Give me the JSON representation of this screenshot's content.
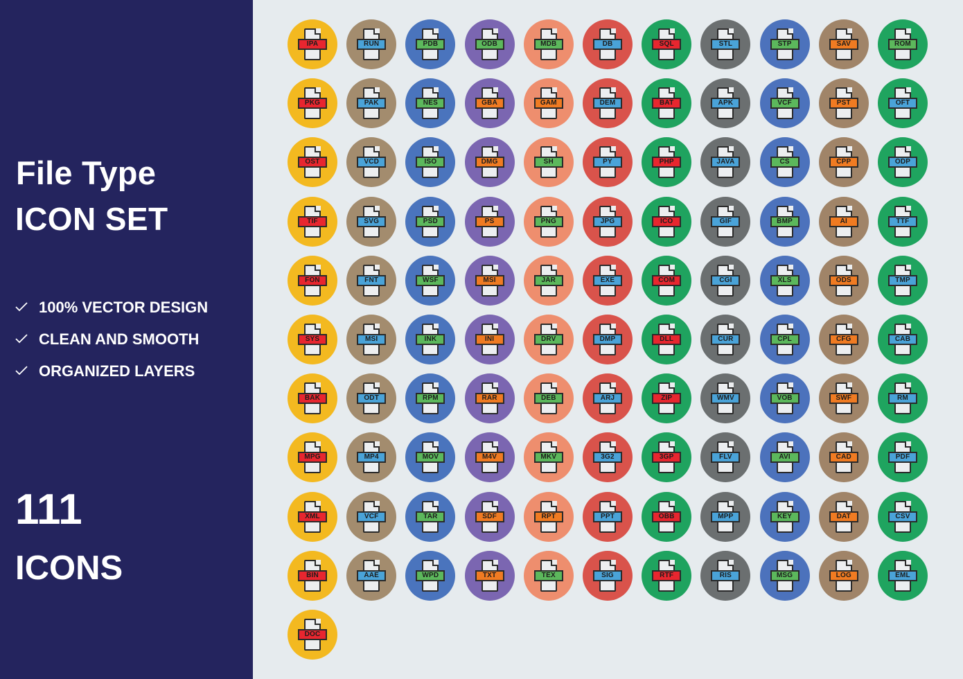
{
  "title": {
    "line1": "File Type",
    "line2": "ICON SET"
  },
  "features": [
    "100% VECTOR DESIGN",
    "CLEAN AND SMOOTH",
    "ORGANIZED LAYERS"
  ],
  "count": {
    "number": "111",
    "label": "ICONS"
  },
  "colors": {
    "sidebar": "#24245e",
    "background": "#e6ebee",
    "columns": [
      "#f3b920",
      "#a38c6e",
      "#4a74bd",
      "#7b66b1",
      "#ee8e6e",
      "#d9534b",
      "#1fa35f",
      "#6b6f70",
      "#4c72bc",
      "#a08468",
      "#1fa45f"
    ],
    "tags": [
      "#e8262f",
      "#4aa3d8",
      "#5cb85c",
      "#f07b22"
    ]
  },
  "rows": [
    [
      {
        "l": "IPA",
        "t": 0
      },
      {
        "l": "RUN",
        "t": 1
      },
      {
        "l": "PDB",
        "t": 2
      },
      {
        "l": "ODB",
        "t": 2
      },
      {
        "l": "MDB",
        "t": 2
      },
      {
        "l": "DB",
        "t": 1
      },
      {
        "l": "SQL",
        "t": 0
      },
      {
        "l": "STL",
        "t": 1
      },
      {
        "l": "STP",
        "t": 2
      },
      {
        "l": "SAV",
        "t": 3
      },
      {
        "l": "ROM",
        "t": 2
      }
    ],
    [
      {
        "l": "PKG",
        "t": 0
      },
      {
        "l": "PAK",
        "t": 1
      },
      {
        "l": "NES",
        "t": 2
      },
      {
        "l": "GBA",
        "t": 3
      },
      {
        "l": "GAM",
        "t": 3
      },
      {
        "l": "DEM",
        "t": 1
      },
      {
        "l": "BAT",
        "t": 0
      },
      {
        "l": "APK",
        "t": 1
      },
      {
        "l": "VCF",
        "t": 2
      },
      {
        "l": "PST",
        "t": 3
      },
      {
        "l": "OFT",
        "t": 1
      }
    ],
    [
      {
        "l": "OST",
        "t": 0
      },
      {
        "l": "VCD",
        "t": 1
      },
      {
        "l": "ISO",
        "t": 2
      },
      {
        "l": "DMG",
        "t": 3
      },
      {
        "l": "SH",
        "t": 2
      },
      {
        "l": "PY",
        "t": 1
      },
      {
        "l": "PHP",
        "t": 0
      },
      {
        "l": "JAVA",
        "t": 1
      },
      {
        "l": "CS",
        "t": 2
      },
      {
        "l": "CPP",
        "t": 3
      },
      {
        "l": "ODP",
        "t": 1
      }
    ],
    [
      {
        "l": "TIF",
        "t": 0
      },
      {
        "l": "SVG",
        "t": 1
      },
      {
        "l": "PSD",
        "t": 2
      },
      {
        "l": "PS",
        "t": 3
      },
      {
        "l": "PNG",
        "t": 2
      },
      {
        "l": "JPG",
        "t": 1
      },
      {
        "l": "ICO",
        "t": 0
      },
      {
        "l": "GIF",
        "t": 1
      },
      {
        "l": "BMP",
        "t": 2
      },
      {
        "l": "AI",
        "t": 3
      },
      {
        "l": "TTF",
        "t": 1
      }
    ],
    [
      {
        "l": "FON",
        "t": 0
      },
      {
        "l": "FNT",
        "t": 1
      },
      {
        "l": "WSF",
        "t": 2
      },
      {
        "l": "MSI",
        "t": 3
      },
      {
        "l": "JAR",
        "t": 2
      },
      {
        "l": "EXE",
        "t": 1
      },
      {
        "l": "COM",
        "t": 0
      },
      {
        "l": "CGI",
        "t": 1
      },
      {
        "l": "XLS",
        "t": 2
      },
      {
        "l": "ODS",
        "t": 3
      },
      {
        "l": "TMP",
        "t": 1
      }
    ],
    [
      {
        "l": "SYS",
        "t": 0
      },
      {
        "l": "MSI",
        "t": 1
      },
      {
        "l": "INK",
        "t": 2
      },
      {
        "l": "INI",
        "t": 3
      },
      {
        "l": "DRV",
        "t": 2
      },
      {
        "l": "DMP",
        "t": 1
      },
      {
        "l": "DLL",
        "t": 0
      },
      {
        "l": "CUR",
        "t": 1
      },
      {
        "l": "CPL",
        "t": 2
      },
      {
        "l": "CFG",
        "t": 3
      },
      {
        "l": "CAB",
        "t": 1
      }
    ],
    [
      {
        "l": "BAK",
        "t": 0
      },
      {
        "l": "ODT",
        "t": 1
      },
      {
        "l": "RPM",
        "t": 2
      },
      {
        "l": "RAR",
        "t": 3
      },
      {
        "l": "DEB",
        "t": 2
      },
      {
        "l": "ARJ",
        "t": 1
      },
      {
        "l": "ZIP",
        "t": 0
      },
      {
        "l": "WMV",
        "t": 1
      },
      {
        "l": "VOB",
        "t": 2
      },
      {
        "l": "SWF",
        "t": 3
      },
      {
        "l": "RM",
        "t": 1
      }
    ],
    [
      {
        "l": "MPG",
        "t": 0
      },
      {
        "l": "MP4",
        "t": 1
      },
      {
        "l": "MOV",
        "t": 2
      },
      {
        "l": "M4V",
        "t": 3
      },
      {
        "l": "MKV",
        "t": 2
      },
      {
        "l": "3G2",
        "t": 1
      },
      {
        "l": "3GP",
        "t": 0
      },
      {
        "l": "FLV",
        "t": 1
      },
      {
        "l": "AVI",
        "t": 2
      },
      {
        "l": "CAD",
        "t": 3
      },
      {
        "l": "PDF",
        "t": 1
      }
    ],
    [
      {
        "l": "XML",
        "t": 0
      },
      {
        "l": "VCF",
        "t": 1
      },
      {
        "l": "TAR",
        "t": 2
      },
      {
        "l": "SDF",
        "t": 3
      },
      {
        "l": "RPT",
        "t": 3
      },
      {
        "l": "PPT",
        "t": 1
      },
      {
        "l": "OBB",
        "t": 0
      },
      {
        "l": "MPP",
        "t": 1
      },
      {
        "l": "KEY",
        "t": 2
      },
      {
        "l": "DAT",
        "t": 3
      },
      {
        "l": "CSV",
        "t": 1
      }
    ],
    [
      {
        "l": "BIN",
        "t": 0
      },
      {
        "l": "AAE",
        "t": 1
      },
      {
        "l": "WPD",
        "t": 2
      },
      {
        "l": "TXT",
        "t": 3
      },
      {
        "l": "TEX",
        "t": 2
      },
      {
        "l": "SIG",
        "t": 1
      },
      {
        "l": "RTF",
        "t": 0
      },
      {
        "l": "RIS",
        "t": 1
      },
      {
        "l": "MSG",
        "t": 2
      },
      {
        "l": "LOG",
        "t": 3
      },
      {
        "l": "EML",
        "t": 1
      }
    ],
    [
      {
        "l": "DOC",
        "t": 0
      }
    ]
  ]
}
